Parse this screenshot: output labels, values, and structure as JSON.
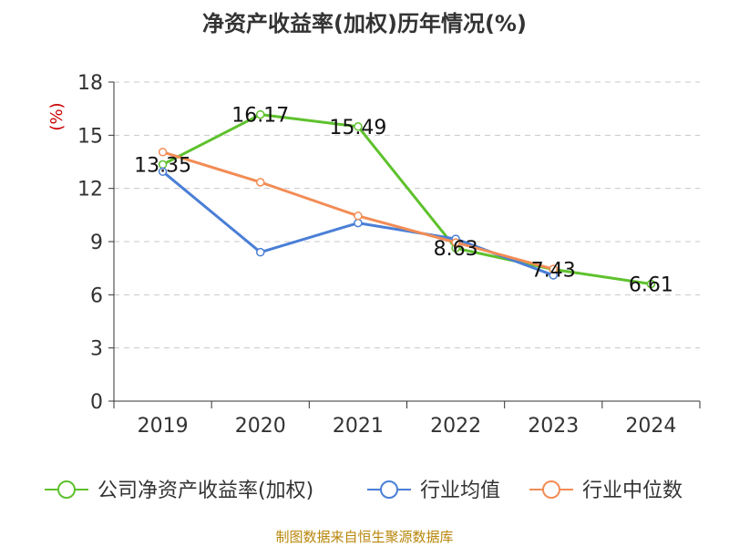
{
  "chart_data": {
    "type": "line",
    "title": "净资产收益率(加权)历年情况(%)",
    "y_unit": "(%)",
    "categories": [
      "2019",
      "2020",
      "2021",
      "2022",
      "2023",
      "2024"
    ],
    "ylim": [
      0,
      18
    ],
    "yticks": [
      0,
      3,
      6,
      9,
      12,
      15,
      18
    ],
    "grid": true,
    "legend_position": "bottom",
    "series": [
      {
        "name": "公司净资产收益率(加权)",
        "color": "#5ec12d",
        "values": [
          13.35,
          16.17,
          15.49,
          8.63,
          7.43,
          6.61
        ],
        "labels": [
          "13.35",
          "16.17",
          "15.49",
          "8.63",
          "7.43",
          "6.61"
        ]
      },
      {
        "name": "行业均值",
        "color": "#4a7fd6",
        "values": [
          12.95,
          8.4,
          10.05,
          9.15,
          7.1,
          null
        ]
      },
      {
        "name": "行业中位数",
        "color": "#f28c55",
        "values": [
          14.05,
          12.35,
          10.45,
          8.95,
          7.45,
          null
        ]
      }
    ]
  },
  "source": "制图数据来自恒生聚源数据库"
}
